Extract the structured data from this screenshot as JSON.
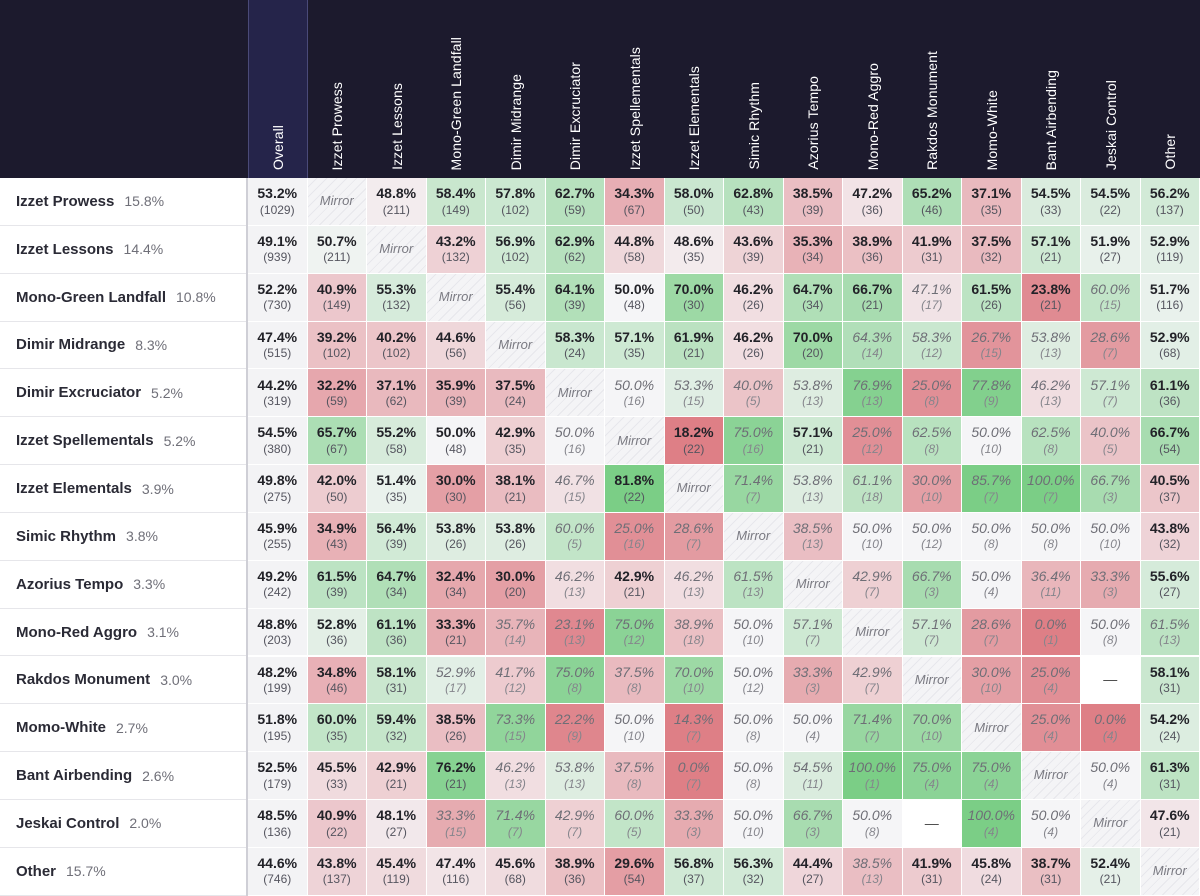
{
  "chart_data": {
    "type": "heatmap",
    "title": "",
    "xlabel": "",
    "ylabel": "",
    "columns": [
      "Overall",
      "Izzet Prowess",
      "Izzet Lessons",
      "Mono-Green Landfall",
      "Dimir Midrange",
      "Dimir Excruciator",
      "Izzet Spellementals",
      "Izzet Elementals",
      "Simic Rhythm",
      "Azorius Tempo",
      "Mono-Red Aggro",
      "Rakdos Monument",
      "Momo-White",
      "Bant Airbending",
      "Jeskai Control",
      "Other"
    ],
    "rows": [
      {
        "name": "Izzet Prowess",
        "share": "15.8%",
        "cells": [
          [
            "53.2%",
            "(1029)"
          ],
          null,
          [
            "48.8%",
            "(211)"
          ],
          [
            "58.4%",
            "(149)"
          ],
          [
            "57.8%",
            "(102)"
          ],
          [
            "62.7%",
            "(59)"
          ],
          [
            "34.3%",
            "(67)"
          ],
          [
            "58.0%",
            "(50)"
          ],
          [
            "62.8%",
            "(43)"
          ],
          [
            "38.5%",
            "(39)"
          ],
          [
            "47.2%",
            "(36)"
          ],
          [
            "65.2%",
            "(46)"
          ],
          [
            "37.1%",
            "(35)"
          ],
          [
            "54.5%",
            "(33)"
          ],
          [
            "54.5%",
            "(22)"
          ],
          [
            "56.2%",
            "(137)"
          ]
        ]
      },
      {
        "name": "Izzet Lessons",
        "share": "14.4%",
        "cells": [
          [
            "49.1%",
            "(939)"
          ],
          [
            "50.7%",
            "(211)"
          ],
          null,
          [
            "43.2%",
            "(132)"
          ],
          [
            "56.9%",
            "(102)"
          ],
          [
            "62.9%",
            "(62)"
          ],
          [
            "44.8%",
            "(58)"
          ],
          [
            "48.6%",
            "(35)"
          ],
          [
            "43.6%",
            "(39)"
          ],
          [
            "35.3%",
            "(34)"
          ],
          [
            "38.9%",
            "(36)"
          ],
          [
            "41.9%",
            "(31)"
          ],
          [
            "37.5%",
            "(32)"
          ],
          [
            "57.1%",
            "(21)"
          ],
          [
            "51.9%",
            "(27)"
          ],
          [
            "52.9%",
            "(119)"
          ]
        ]
      },
      {
        "name": "Mono-Green Landfall",
        "share": "10.8%",
        "cells": [
          [
            "52.2%",
            "(730)"
          ],
          [
            "40.9%",
            "(149)"
          ],
          [
            "55.3%",
            "(132)"
          ],
          null,
          [
            "55.4%",
            "(56)"
          ],
          [
            "64.1%",
            "(39)"
          ],
          [
            "50.0%",
            "(48)"
          ],
          [
            "70.0%",
            "(30)"
          ],
          [
            "46.2%",
            "(26)"
          ],
          [
            "64.7%",
            "(34)"
          ],
          [
            "66.7%",
            "(21)"
          ],
          [
            "47.1%",
            "(17)"
          ],
          [
            "61.5%",
            "(26)"
          ],
          [
            "23.8%",
            "(21)"
          ],
          [
            "60.0%",
            "(15)"
          ],
          [
            "51.7%",
            "(116)"
          ]
        ]
      },
      {
        "name": "Dimir Midrange",
        "share": "8.3%",
        "cells": [
          [
            "47.4%",
            "(515)"
          ],
          [
            "39.2%",
            "(102)"
          ],
          [
            "40.2%",
            "(102)"
          ],
          [
            "44.6%",
            "(56)"
          ],
          null,
          [
            "58.3%",
            "(24)"
          ],
          [
            "57.1%",
            "(35)"
          ],
          [
            "61.9%",
            "(21)"
          ],
          [
            "46.2%",
            "(26)"
          ],
          [
            "70.0%",
            "(20)"
          ],
          [
            "64.3%",
            "(14)"
          ],
          [
            "58.3%",
            "(12)"
          ],
          [
            "26.7%",
            "(15)"
          ],
          [
            "53.8%",
            "(13)"
          ],
          [
            "28.6%",
            "(7)"
          ],
          [
            "52.9%",
            "(68)"
          ]
        ]
      },
      {
        "name": "Dimir Excruciator",
        "share": "5.2%",
        "cells": [
          [
            "44.2%",
            "(319)"
          ],
          [
            "32.2%",
            "(59)"
          ],
          [
            "37.1%",
            "(62)"
          ],
          [
            "35.9%",
            "(39)"
          ],
          [
            "37.5%",
            "(24)"
          ],
          null,
          [
            "50.0%",
            "(16)"
          ],
          [
            "53.3%",
            "(15)"
          ],
          [
            "40.0%",
            "(5)"
          ],
          [
            "53.8%",
            "(13)"
          ],
          [
            "76.9%",
            "(13)"
          ],
          [
            "25.0%",
            "(8)"
          ],
          [
            "77.8%",
            "(9)"
          ],
          [
            "46.2%",
            "(13)"
          ],
          [
            "57.1%",
            "(7)"
          ],
          [
            "61.1%",
            "(36)"
          ]
        ]
      },
      {
        "name": "Izzet Spellementals",
        "share": "5.2%",
        "cells": [
          [
            "54.5%",
            "(380)"
          ],
          [
            "65.7%",
            "(67)"
          ],
          [
            "55.2%",
            "(58)"
          ],
          [
            "50.0%",
            "(48)"
          ],
          [
            "42.9%",
            "(35)"
          ],
          [
            "50.0%",
            "(16)"
          ],
          null,
          [
            "18.2%",
            "(22)"
          ],
          [
            "75.0%",
            "(16)"
          ],
          [
            "57.1%",
            "(21)"
          ],
          [
            "25.0%",
            "(12)"
          ],
          [
            "62.5%",
            "(8)"
          ],
          [
            "50.0%",
            "(10)"
          ],
          [
            "62.5%",
            "(8)"
          ],
          [
            "40.0%",
            "(5)"
          ],
          [
            "66.7%",
            "(54)"
          ]
        ]
      },
      {
        "name": "Izzet Elementals",
        "share": "3.9%",
        "cells": [
          [
            "49.8%",
            "(275)"
          ],
          [
            "42.0%",
            "(50)"
          ],
          [
            "51.4%",
            "(35)"
          ],
          [
            "30.0%",
            "(30)"
          ],
          [
            "38.1%",
            "(21)"
          ],
          [
            "46.7%",
            "(15)"
          ],
          [
            "81.8%",
            "(22)"
          ],
          null,
          [
            "71.4%",
            "(7)"
          ],
          [
            "53.8%",
            "(13)"
          ],
          [
            "61.1%",
            "(18)"
          ],
          [
            "30.0%",
            "(10)"
          ],
          [
            "85.7%",
            "(7)"
          ],
          [
            "100.0%",
            "(7)"
          ],
          [
            "66.7%",
            "(3)"
          ],
          [
            "40.5%",
            "(37)"
          ]
        ]
      },
      {
        "name": "Simic Rhythm",
        "share": "3.8%",
        "cells": [
          [
            "45.9%",
            "(255)"
          ],
          [
            "34.9%",
            "(43)"
          ],
          [
            "56.4%",
            "(39)"
          ],
          [
            "53.8%",
            "(26)"
          ],
          [
            "53.8%",
            "(26)"
          ],
          [
            "60.0%",
            "(5)"
          ],
          [
            "25.0%",
            "(16)"
          ],
          [
            "28.6%",
            "(7)"
          ],
          null,
          [
            "38.5%",
            "(13)"
          ],
          [
            "50.0%",
            "(10)"
          ],
          [
            "50.0%",
            "(12)"
          ],
          [
            "50.0%",
            "(8)"
          ],
          [
            "50.0%",
            "(8)"
          ],
          [
            "50.0%",
            "(10)"
          ],
          [
            "43.8%",
            "(32)"
          ]
        ]
      },
      {
        "name": "Azorius Tempo",
        "share": "3.3%",
        "cells": [
          [
            "49.2%",
            "(242)"
          ],
          [
            "61.5%",
            "(39)"
          ],
          [
            "64.7%",
            "(34)"
          ],
          [
            "32.4%",
            "(34)"
          ],
          [
            "30.0%",
            "(20)"
          ],
          [
            "46.2%",
            "(13)"
          ],
          [
            "42.9%",
            "(21)"
          ],
          [
            "46.2%",
            "(13)"
          ],
          [
            "61.5%",
            "(13)"
          ],
          null,
          [
            "42.9%",
            "(7)"
          ],
          [
            "66.7%",
            "(3)"
          ],
          [
            "50.0%",
            "(4)"
          ],
          [
            "36.4%",
            "(11)"
          ],
          [
            "33.3%",
            "(3)"
          ],
          [
            "55.6%",
            "(27)"
          ]
        ]
      },
      {
        "name": "Mono-Red Aggro",
        "share": "3.1%",
        "cells": [
          [
            "48.8%",
            "(203)"
          ],
          [
            "52.8%",
            "(36)"
          ],
          [
            "61.1%",
            "(36)"
          ],
          [
            "33.3%",
            "(21)"
          ],
          [
            "35.7%",
            "(14)"
          ],
          [
            "23.1%",
            "(13)"
          ],
          [
            "75.0%",
            "(12)"
          ],
          [
            "38.9%",
            "(18)"
          ],
          [
            "50.0%",
            "(10)"
          ],
          [
            "57.1%",
            "(7)"
          ],
          null,
          [
            "57.1%",
            "(7)"
          ],
          [
            "28.6%",
            "(7)"
          ],
          [
            "0.0%",
            "(1)"
          ],
          [
            "50.0%",
            "(8)"
          ],
          [
            "61.5%",
            "(13)"
          ]
        ]
      },
      {
        "name": "Rakdos Monument",
        "share": "3.0%",
        "cells": [
          [
            "48.2%",
            "(199)"
          ],
          [
            "34.8%",
            "(46)"
          ],
          [
            "58.1%",
            "(31)"
          ],
          [
            "52.9%",
            "(17)"
          ],
          [
            "41.7%",
            "(12)"
          ],
          [
            "75.0%",
            "(8)"
          ],
          [
            "37.5%",
            "(8)"
          ],
          [
            "70.0%",
            "(10)"
          ],
          [
            "50.0%",
            "(12)"
          ],
          [
            "33.3%",
            "(3)"
          ],
          [
            "42.9%",
            "(7)"
          ],
          null,
          [
            "30.0%",
            "(10)"
          ],
          [
            "25.0%",
            "(4)"
          ],
          "—",
          [
            "58.1%",
            "(31)"
          ]
        ]
      },
      {
        "name": "Momo-White",
        "share": "2.7%",
        "cells": [
          [
            "51.8%",
            "(195)"
          ],
          [
            "60.0%",
            "(35)"
          ],
          [
            "59.4%",
            "(32)"
          ],
          [
            "38.5%",
            "(26)"
          ],
          [
            "73.3%",
            "(15)"
          ],
          [
            "22.2%",
            "(9)"
          ],
          [
            "50.0%",
            "(10)"
          ],
          [
            "14.3%",
            "(7)"
          ],
          [
            "50.0%",
            "(8)"
          ],
          [
            "50.0%",
            "(4)"
          ],
          [
            "71.4%",
            "(7)"
          ],
          [
            "70.0%",
            "(10)"
          ],
          null,
          [
            "25.0%",
            "(4)"
          ],
          [
            "0.0%",
            "(4)"
          ],
          [
            "54.2%",
            "(24)"
          ]
        ]
      },
      {
        "name": "Bant Airbending",
        "share": "2.6%",
        "cells": [
          [
            "52.5%",
            "(179)"
          ],
          [
            "45.5%",
            "(33)"
          ],
          [
            "42.9%",
            "(21)"
          ],
          [
            "76.2%",
            "(21)"
          ],
          [
            "46.2%",
            "(13)"
          ],
          [
            "53.8%",
            "(13)"
          ],
          [
            "37.5%",
            "(8)"
          ],
          [
            "0.0%",
            "(7)"
          ],
          [
            "50.0%",
            "(8)"
          ],
          [
            "54.5%",
            "(11)"
          ],
          [
            "100.0%",
            "(1)"
          ],
          [
            "75.0%",
            "(4)"
          ],
          [
            "75.0%",
            "(4)"
          ],
          null,
          [
            "50.0%",
            "(4)"
          ],
          [
            "61.3%",
            "(31)"
          ]
        ]
      },
      {
        "name": "Jeskai Control",
        "share": "2.0%",
        "cells": [
          [
            "48.5%",
            "(136)"
          ],
          [
            "40.9%",
            "(22)"
          ],
          [
            "48.1%",
            "(27)"
          ],
          [
            "33.3%",
            "(15)"
          ],
          [
            "71.4%",
            "(7)"
          ],
          [
            "42.9%",
            "(7)"
          ],
          [
            "60.0%",
            "(5)"
          ],
          [
            "33.3%",
            "(3)"
          ],
          [
            "50.0%",
            "(10)"
          ],
          [
            "66.7%",
            "(3)"
          ],
          [
            "50.0%",
            "(8)"
          ],
          "—",
          [
            "100.0%",
            "(4)"
          ],
          [
            "50.0%",
            "(4)"
          ],
          null,
          [
            "47.6%",
            "(21)"
          ]
        ]
      },
      {
        "name": "Other",
        "share": "15.7%",
        "cells": [
          [
            "44.6%",
            "(746)"
          ],
          [
            "43.8%",
            "(137)"
          ],
          [
            "45.4%",
            "(119)"
          ],
          [
            "47.4%",
            "(116)"
          ],
          [
            "45.6%",
            "(68)"
          ],
          [
            "38.9%",
            "(36)"
          ],
          [
            "29.6%",
            "(54)"
          ],
          [
            "56.8%",
            "(37)"
          ],
          [
            "56.3%",
            "(32)"
          ],
          [
            "44.4%",
            "(27)"
          ],
          [
            "38.5%",
            "(13)"
          ],
          [
            "41.9%",
            "(31)"
          ],
          [
            "45.8%",
            "(24)"
          ],
          [
            "38.7%",
            "(31)"
          ],
          [
            "52.4%",
            "(21)"
          ],
          null
        ]
      }
    ],
    "mirror_label": "Mirror",
    "low_sample_threshold": 20,
    "colors": {
      "header_bg": "#1c1a2d",
      "overall_header_bg": "#25244a",
      "positive": "#5cc46a",
      "negative": "#d8616a",
      "neutral": "#f5f5f7"
    }
  }
}
